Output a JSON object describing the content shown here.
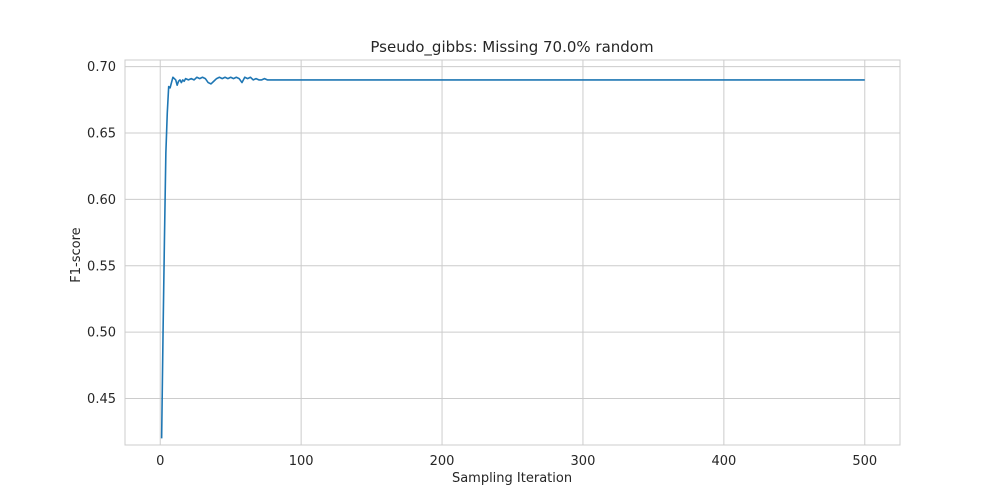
{
  "chart_data": {
    "type": "line",
    "title": "Pseudo_gibbs: Missing 70.0% random",
    "xlabel": "Sampling Iteration",
    "ylabel": "F1-score",
    "xlim": [
      -25,
      525
    ],
    "ylim": [
      0.415,
      0.705
    ],
    "xticks": [
      0,
      100,
      200,
      300,
      400,
      500
    ],
    "yticks": [
      0.45,
      0.5,
      0.55,
      0.6,
      0.65,
      0.7
    ],
    "xtick_labels": [
      "0",
      "100",
      "200",
      "300",
      "400",
      "500"
    ],
    "ytick_labels": [
      "0.45",
      "0.50",
      "0.55",
      "0.60",
      "0.65",
      "0.70"
    ],
    "grid": true,
    "series": [
      {
        "color": "#1f77b4",
        "x": [
          1,
          2,
          3,
          4,
          5,
          6,
          7,
          8,
          9,
          10,
          11,
          12,
          13,
          14,
          15,
          16,
          17,
          18,
          20,
          22,
          24,
          26,
          28,
          30,
          32,
          34,
          36,
          38,
          40,
          42,
          44,
          46,
          48,
          50,
          52,
          54,
          56,
          58,
          60,
          62,
          64,
          66,
          68,
          70,
          72,
          74,
          76,
          78,
          80,
          82,
          85,
          90,
          100,
          150,
          200,
          300,
          400,
          500
        ],
        "y": [
          0.42,
          0.5,
          0.57,
          0.635,
          0.665,
          0.685,
          0.684,
          0.688,
          0.692,
          0.691,
          0.69,
          0.686,
          0.689,
          0.69,
          0.688,
          0.69,
          0.689,
          0.691,
          0.69,
          0.691,
          0.69,
          0.692,
          0.691,
          0.692,
          0.691,
          0.688,
          0.687,
          0.689,
          0.691,
          0.692,
          0.691,
          0.692,
          0.691,
          0.692,
          0.691,
          0.692,
          0.691,
          0.688,
          0.692,
          0.691,
          0.692,
          0.69,
          0.691,
          0.69,
          0.69,
          0.691,
          0.69,
          0.69,
          0.69,
          0.69,
          0.69,
          0.69,
          0.69,
          0.69,
          0.69,
          0.69,
          0.69,
          0.69
        ]
      }
    ]
  }
}
